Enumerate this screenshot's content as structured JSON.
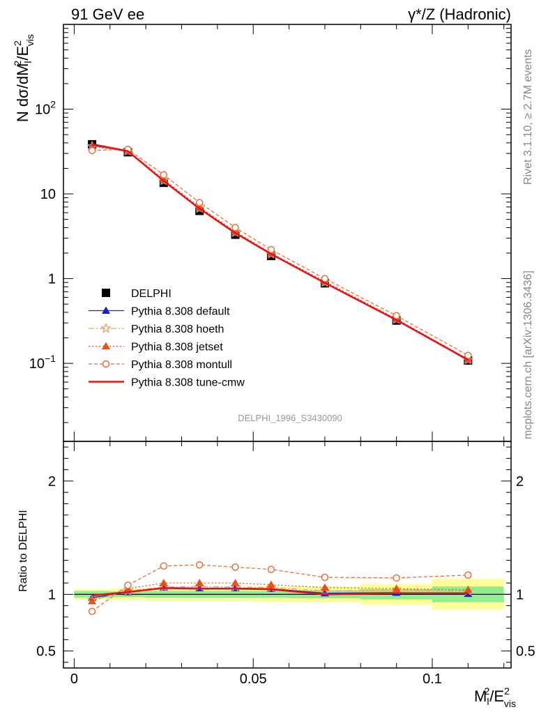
{
  "header": {
    "left_title": "91 GeV ee",
    "right_title": "γ*/Z (Hadronic)"
  },
  "side_labels": {
    "rivet": "Rivet 3.1.10, ≥ 2.7M events",
    "mcplots": "mcplots.cern.ch [arXiv:1306.3436]"
  },
  "analysis_tag": "DELPHI_1996_S3430090",
  "colors": {
    "data": "#000000",
    "default": "#1a1ad8",
    "hoeth": "#e8a060",
    "jetset": "#e8501a",
    "montull": "#e8703a",
    "cmw": "#e81010",
    "band_inner": "#90f090",
    "band_outer": "#ffff99"
  },
  "chart_data": [
    {
      "type": "line",
      "yscale": "log",
      "ylabel_main": "N dσ/dM",
      "ylabel_sup": "2",
      "ylabel_sub": "l",
      "ylabel_mid": "/E",
      "ylabel_sup2": "2",
      "ylabel_sub2": "vis",
      "xlim": [
        -0.003,
        0.122
      ],
      "ylim": [
        0.012,
        1000
      ],
      "yticks": [
        {
          "value": 100,
          "base": "10",
          "exp": "2"
        },
        {
          "value": 10,
          "base": "10",
          "exp": ""
        },
        {
          "value": 1,
          "base": "1",
          "exp": ""
        },
        {
          "value": 0.1,
          "base": "10",
          "exp": "−1"
        }
      ],
      "x": [
        0.005,
        0.015,
        0.025,
        0.035,
        0.045,
        0.055,
        0.07,
        0.09,
        0.11
      ],
      "data": {
        "name": "DELPHI",
        "values": [
          38.5,
          31.0,
          13.5,
          6.3,
          3.3,
          1.85,
          0.88,
          0.32,
          0.108
        ]
      },
      "series": [
        {
          "name": "Pythia 8.308 default",
          "key": "default",
          "dash": "",
          "marker": "triangle-filled",
          "values": [
            37.5,
            31.5,
            14.2,
            6.7,
            3.45,
            1.95,
            0.89,
            0.325,
            0.108
          ]
        },
        {
          "name": "Pythia 8.308 hoeth",
          "key": "hoeth",
          "dash": "8,3,2,3",
          "marker": "star",
          "values": [
            36.5,
            32.0,
            14.3,
            6.75,
            3.5,
            1.95,
            0.9,
            0.33,
            0.11
          ]
        },
        {
          "name": "Pythia 8.308 jetset",
          "key": "jetset",
          "dash": "2,3",
          "marker": "triangle-filled",
          "values": [
            36.0,
            32.5,
            14.8,
            7.0,
            3.6,
            2.0,
            0.93,
            0.335,
            0.112
          ]
        },
        {
          "name": "Pythia 8.308 montull",
          "key": "montull",
          "dash": "5,3",
          "marker": "circle-open",
          "values": [
            32.5,
            33.5,
            16.8,
            7.9,
            4.0,
            2.2,
            1.0,
            0.365,
            0.124
          ]
        },
        {
          "name": "Pythia 8.308 tune-cmw",
          "key": "cmw",
          "dash": "",
          "marker": "none",
          "values": [
            38.5,
            32.0,
            14.2,
            6.7,
            3.45,
            1.95,
            0.89,
            0.325,
            0.11
          ]
        }
      ]
    },
    {
      "type": "line",
      "ylabel": "Ratio to DELPHI",
      "xlabel_main": "M",
      "xlabel_sup": "2",
      "xlabel_sub": "l",
      "xlabel_mid": "/E",
      "xlabel_sup2": "2",
      "xlabel_sub2": "vis",
      "xlim": [
        -0.003,
        0.122
      ],
      "ylim": [
        0.35,
        2.35
      ],
      "yticks": [
        "0.5",
        "1",
        "2"
      ],
      "ytick_values": [
        0.5,
        1,
        2
      ],
      "xticks": [
        "0",
        "0.05",
        "0.1"
      ],
      "xtick_values": [
        0,
        0.05,
        0.1
      ],
      "bins": [
        [
          0.0,
          0.01
        ],
        [
          0.01,
          0.02
        ],
        [
          0.02,
          0.03
        ],
        [
          0.03,
          0.04
        ],
        [
          0.04,
          0.05
        ],
        [
          0.05,
          0.06
        ],
        [
          0.06,
          0.08
        ],
        [
          0.08,
          0.1
        ],
        [
          0.1,
          0.12
        ]
      ],
      "band_inner": [
        [
          0.97,
          1.03
        ],
        [
          0.975,
          1.025
        ],
        [
          0.97,
          1.03
        ],
        [
          0.97,
          1.03
        ],
        [
          0.97,
          1.03
        ],
        [
          0.97,
          1.03
        ],
        [
          0.965,
          1.035
        ],
        [
          0.955,
          1.045
        ],
        [
          0.93,
          1.07
        ]
      ],
      "band_outer": [
        [
          0.955,
          1.045
        ],
        [
          0.95,
          1.05
        ],
        [
          0.945,
          1.055
        ],
        [
          0.94,
          1.06
        ],
        [
          0.94,
          1.06
        ],
        [
          0.935,
          1.065
        ],
        [
          0.93,
          1.07
        ],
        [
          0.91,
          1.09
        ],
        [
          0.865,
          1.135
        ]
      ],
      "x": [
        0.005,
        0.015,
        0.025,
        0.035,
        0.045,
        0.055,
        0.07,
        0.09,
        0.11
      ],
      "series": [
        {
          "key": "default",
          "dash": "",
          "marker": "triangle-filled",
          "values": [
            0.97,
            1.02,
            1.06,
            1.055,
            1.055,
            1.05,
            1.01,
            1.015,
            1.005
          ]
        },
        {
          "key": "hoeth",
          "dash": "8,3,2,3",
          "marker": "star",
          "values": [
            0.95,
            1.03,
            1.065,
            1.07,
            1.065,
            1.06,
            1.03,
            1.04,
            1.03
          ]
        },
        {
          "key": "jetset",
          "dash": "2,3",
          "marker": "triangle-filled",
          "values": [
            0.94,
            1.05,
            1.1,
            1.1,
            1.1,
            1.085,
            1.06,
            1.05,
            1.04
          ]
        },
        {
          "key": "montull",
          "dash": "5,3",
          "marker": "circle-open",
          "values": [
            0.85,
            1.08,
            1.25,
            1.26,
            1.24,
            1.22,
            1.15,
            1.145,
            1.17
          ]
        },
        {
          "key": "cmw",
          "dash": "",
          "marker": "none",
          "values": [
            0.99,
            1.02,
            1.055,
            1.05,
            1.05,
            1.045,
            1.0,
            1.01,
            1.01
          ]
        }
      ]
    }
  ]
}
